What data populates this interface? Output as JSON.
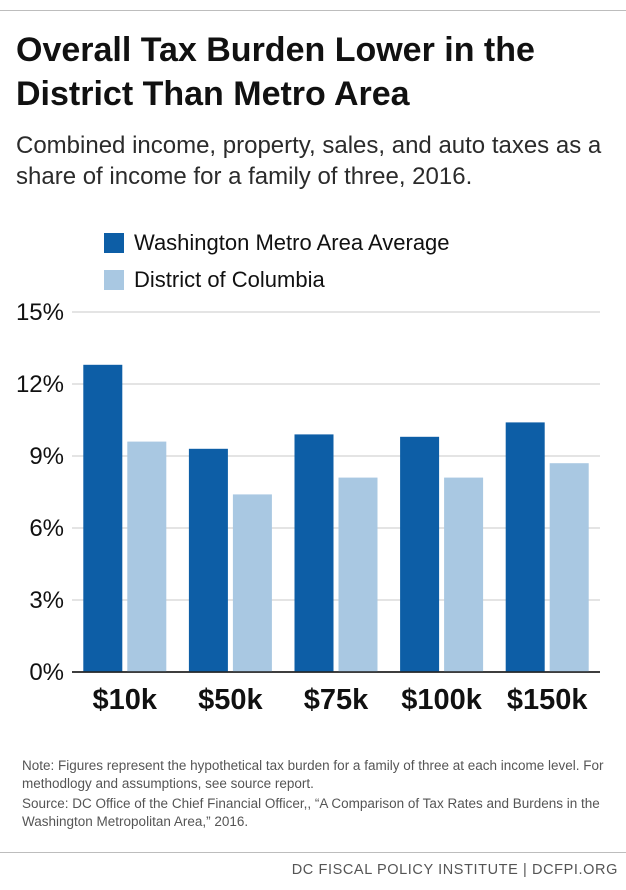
{
  "header": {
    "title": "Overall Tax Burden Lower in the District Than Metro Area",
    "subtitle": "Combined income, property, sales, and auto taxes as a share of income for a family of three, 2016."
  },
  "chart_data": {
    "type": "bar",
    "categories": [
      "$10k",
      "$50k",
      "$75k",
      "$100k",
      "$150k"
    ],
    "series": [
      {
        "name": "Washington Metro Area Average",
        "color": "#0d5ea6",
        "values": [
          12.8,
          9.3,
          9.9,
          9.8,
          10.4
        ]
      },
      {
        "name": "District of Columbia",
        "color": "#a9c8e2",
        "values": [
          9.6,
          7.4,
          8.1,
          8.1,
          8.7
        ]
      }
    ],
    "ylim": [
      0,
      15
    ],
    "yticks": [
      0,
      3,
      6,
      9,
      12,
      15
    ],
    "ytick_labels": [
      "0%",
      "3%",
      "6%",
      "9%",
      "12%",
      "15%"
    ],
    "legend_position": "top-left",
    "grid": true
  },
  "notes": {
    "note": "Note: Figures represent the hypothetical tax burden for a family of three at each income level. For methodlogy and assumptions, see source report.",
    "source": "Source: DC Office of the Chief Financial Officer,, “A Comparison of Tax Rates and Burdens in the Washington Metropolitan Area,” 2016."
  },
  "footer": {
    "credit": "DC FISCAL POLICY INSTITUTE | DCFPI.ORG"
  }
}
